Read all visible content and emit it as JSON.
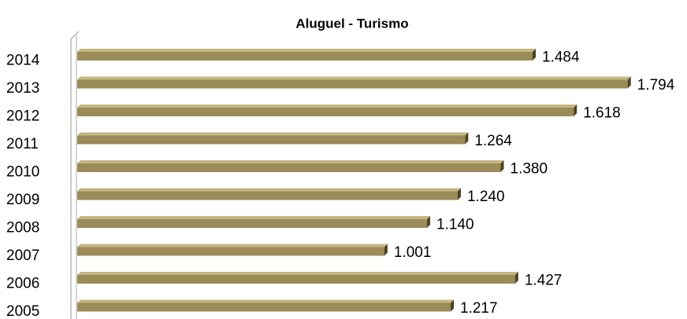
{
  "chart_data": {
    "type": "bar",
    "orientation": "horizontal",
    "title": "Aluguel - Turismo",
    "categories": [
      "2005",
      "2006",
      "2007",
      "2008",
      "2009",
      "2010",
      "2011",
      "2012",
      "2013",
      "2014"
    ],
    "values": [
      1217,
      1427,
      1001,
      1140,
      1240,
      1380,
      1264,
      1618,
      1794,
      1484
    ],
    "value_labels": [
      "1.217",
      "1.427",
      "1.001",
      "1.140",
      "1.240",
      "1.380",
      "1.264",
      "1.618",
      "1.794",
      "1.484"
    ],
    "color": "#9b8b58",
    "xlim": [
      0,
      2000
    ]
  }
}
